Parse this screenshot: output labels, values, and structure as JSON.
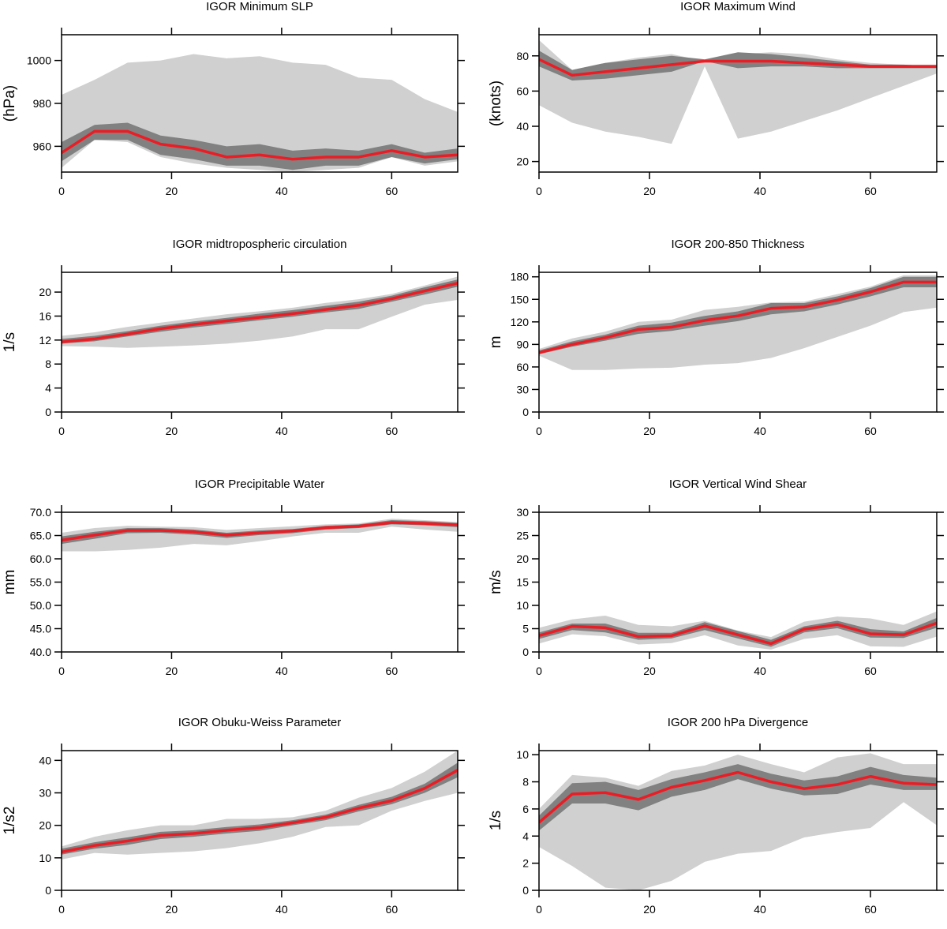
{
  "chart_data": [
    {
      "type": "area",
      "title": "IGOR Minimum SLP",
      "ylabel": "(hPa)",
      "x": [
        0,
        6,
        12,
        18,
        24,
        30,
        36,
        42,
        48,
        54,
        60,
        66,
        72
      ],
      "xlim": [
        0,
        72
      ],
      "ylim": [
        948,
        1012
      ],
      "xticks": [
        0,
        20,
        40,
        60
      ],
      "yticks": [
        960,
        980,
        1000
      ],
      "ytick_labels": [
        "960",
        "980",
        "1000"
      ],
      "series": [
        {
          "role": "outer_range",
          "upper": [
            984,
            991,
            999,
            1000,
            1003,
            1001,
            1002,
            999,
            998,
            992,
            991,
            982,
            976
          ],
          "lower": [
            950,
            963,
            962,
            955,
            952,
            950,
            949,
            948,
            949,
            950,
            955,
            951,
            953
          ]
        },
        {
          "role": "inner_range",
          "upper": [
            962,
            970,
            971,
            965,
            963,
            960,
            961,
            958,
            959,
            958,
            961,
            957,
            959
          ],
          "lower": [
            953,
            963,
            963,
            956,
            954,
            951,
            951,
            949,
            951,
            951,
            955,
            952,
            954
          ]
        },
        {
          "role": "mean",
          "values": [
            957,
            967,
            967,
            961,
            959,
            955,
            956,
            954,
            955,
            955,
            958,
            955,
            956
          ]
        }
      ]
    },
    {
      "type": "area",
      "title": "IGOR Maximum Wind",
      "ylabel": "(knots)",
      "x": [
        0,
        6,
        12,
        18,
        24,
        30,
        36,
        42,
        48,
        54,
        60,
        66,
        72
      ],
      "xlim": [
        0,
        72
      ],
      "ylim": [
        14,
        92
      ],
      "xticks": [
        0,
        20,
        40,
        60
      ],
      "yticks": [
        20,
        40,
        60,
        80
      ],
      "ytick_labels": [
        "20",
        "40",
        "60",
        "80"
      ],
      "series": [
        {
          "role": "outer_range",
          "upper": [
            89,
            72,
            76,
            79,
            81,
            77,
            81,
            82,
            81,
            78,
            76,
            75,
            75
          ],
          "lower": [
            52,
            42,
            37,
            34,
            30,
            74,
            33,
            37,
            43,
            49,
            56,
            63,
            70
          ]
        },
        {
          "role": "inner_range",
          "upper": [
            83,
            72,
            76,
            78,
            80,
            78,
            82,
            81,
            79,
            77,
            75,
            75,
            74
          ],
          "lower": [
            74,
            66,
            67,
            69,
            71,
            77,
            73,
            74,
            74,
            73,
            73,
            73,
            73
          ]
        },
        {
          "role": "mean",
          "values": [
            78,
            69,
            71,
            73,
            75,
            77,
            77,
            77,
            76,
            75,
            74,
            74,
            74
          ]
        }
      ]
    },
    {
      "type": "area",
      "title": "IGOR midtropospheric circulation",
      "ylabel": "1/s",
      "x": [
        0,
        6,
        12,
        18,
        24,
        30,
        36,
        42,
        48,
        54,
        60,
        66,
        72
      ],
      "xlim": [
        0,
        72
      ],
      "ylim": [
        0,
        23.3
      ],
      "xticks": [
        0,
        20,
        40,
        60
      ],
      "yticks": [
        0,
        4,
        8,
        12,
        16,
        20
      ],
      "ytick_labels": [
        "0",
        "4",
        "8",
        "12",
        "16",
        "20"
      ],
      "series": [
        {
          "role": "outer_range",
          "upper": [
            12.7,
            13.3,
            14.2,
            14.9,
            15.6,
            16.3,
            16.8,
            17.4,
            18.2,
            18.8,
            19.7,
            21.1,
            22.6
          ],
          "lower": [
            11,
            10.9,
            10.7,
            10.9,
            11.1,
            11.4,
            11.9,
            12.6,
            13.8,
            13.8,
            15.9,
            17.9,
            18.7
          ]
        },
        {
          "role": "inner_range",
          "upper": [
            12.2,
            12.7,
            13.5,
            14.4,
            15.1,
            15.7,
            16.4,
            17,
            17.7,
            18.4,
            19.4,
            20.8,
            22.1
          ],
          "lower": [
            11.4,
            11.8,
            12.6,
            13.4,
            14.1,
            14.7,
            15.3,
            15.9,
            16.6,
            17.2,
            18.4,
            19.6,
            20.9
          ]
        },
        {
          "role": "mean",
          "values": [
            11.7,
            12.2,
            13,
            13.9,
            14.6,
            15.2,
            15.8,
            16.4,
            17.1,
            17.8,
            18.9,
            20.2,
            21.5
          ]
        }
      ]
    },
    {
      "type": "area",
      "title": "IGOR 200-850 Thickness",
      "ylabel": "m",
      "x": [
        0,
        6,
        12,
        18,
        24,
        30,
        36,
        42,
        48,
        54,
        60,
        66,
        72
      ],
      "xlim": [
        0,
        72
      ],
      "ylim": [
        0,
        186
      ],
      "xticks": [
        0,
        20,
        40,
        60
      ],
      "yticks": [
        0,
        30,
        60,
        90,
        120,
        150,
        180
      ],
      "ytick_labels": [
        "0",
        "30",
        "60",
        "90",
        "120",
        "150",
        "180"
      ],
      "series": [
        {
          "role": "outer_range",
          "upper": [
            84,
            98,
            107,
            120,
            123,
            136,
            140,
            146,
            147,
            157,
            167,
            182,
            182
          ],
          "lower": [
            75,
            56,
            56,
            58,
            59,
            63,
            65,
            72,
            85,
            100,
            115,
            133,
            139
          ]
        },
        {
          "role": "inner_range",
          "upper": [
            82,
            94,
            103,
            115,
            119,
            128,
            134,
            145,
            145,
            154,
            165,
            180,
            180
          ],
          "lower": [
            77,
            87,
            95,
            104,
            108,
            115,
            121,
            130,
            134,
            143,
            154,
            166,
            166
          ]
        },
        {
          "role": "mean",
          "values": [
            79,
            90,
            99,
            110,
            113,
            122,
            128,
            138,
            140,
            149,
            160,
            173,
            173
          ]
        }
      ]
    },
    {
      "type": "area",
      "title": "IGOR Precipitable Water",
      "ylabel": "mm",
      "x": [
        0,
        6,
        12,
        18,
        24,
        30,
        36,
        42,
        48,
        54,
        60,
        66,
        72
      ],
      "xlim": [
        0,
        72
      ],
      "ylim": [
        40,
        70
      ],
      "xticks": [
        0,
        20,
        40,
        60
      ],
      "yticks": [
        40,
        45,
        50,
        55,
        60,
        65,
        70
      ],
      "ytick_labels": [
        "40.0",
        "45.0",
        "50.0",
        "55.0",
        "60.0",
        "65.0",
        "70.0"
      ],
      "series": [
        {
          "role": "outer_range",
          "upper": [
            65.6,
            66.6,
            67.1,
            66.9,
            66.8,
            66.2,
            66.6,
            67,
            67.4,
            67.6,
            68.6,
            68.3,
            67.9
          ],
          "lower": [
            61.6,
            61.6,
            61.9,
            62.4,
            63.2,
            62.9,
            63.8,
            64.8,
            65.6,
            65.6,
            66.9,
            66.3,
            65.8
          ]
        },
        {
          "role": "inner_range",
          "upper": [
            64.8,
            65.8,
            66.6,
            66.6,
            66.3,
            65.6,
            66.1,
            66.4,
            67.1,
            67.4,
            68.3,
            68.1,
            67.7
          ],
          "lower": [
            63.2,
            64.3,
            65.5,
            65.6,
            65.2,
            64.5,
            65.1,
            65.5,
            66.3,
            66.6,
            67.4,
            67.2,
            66.8
          ]
        },
        {
          "role": "mean",
          "values": [
            64,
            65.1,
            66.1,
            66.1,
            65.8,
            65.1,
            65.6,
            66,
            66.7,
            67,
            67.8,
            67.6,
            67.3
          ]
        }
      ]
    },
    {
      "type": "area",
      "title": "IGOR Vertical Wind Shear",
      "ylabel": "m/s",
      "x": [
        0,
        6,
        12,
        18,
        24,
        30,
        36,
        42,
        48,
        54,
        60,
        66,
        72
      ],
      "xlim": [
        0,
        72
      ],
      "ylim": [
        0,
        30
      ],
      "xticks": [
        0,
        20,
        40,
        60
      ],
      "yticks": [
        0,
        5,
        10,
        15,
        20,
        25,
        30
      ],
      "ytick_labels": [
        "0",
        "5",
        "10",
        "15",
        "20",
        "25",
        "30"
      ],
      "series": [
        {
          "role": "outer_range",
          "upper": [
            5.2,
            7,
            7.8,
            5.8,
            5.5,
            6.7,
            4.6,
            3.2,
            6.5,
            7.6,
            7.2,
            5.8,
            8.7
          ],
          "lower": [
            1.8,
            3.8,
            3.4,
            1.6,
            1.9,
            3.6,
            1.4,
            0.5,
            2.8,
            3.6,
            1.2,
            1.1,
            3.3
          ]
        },
        {
          "role": "inner_range",
          "upper": [
            4.2,
            6.1,
            6.1,
            4.1,
            4.1,
            6.4,
            4.5,
            2.6,
            5.5,
            6.7,
            4.9,
            4.4,
            7.3
          ],
          " lower": [
            2.8,
            4.7,
            4.2,
            2.6,
            2.9,
            4.7,
            2.9,
            1.1,
            4.2,
            5.1,
            3.1,
            3,
            5.2
          ]
        },
        {
          "role": "mean",
          "values": [
            3.5,
            5.5,
            5.2,
            3.3,
            3.5,
            5.6,
            3.7,
            1.8,
            4.9,
            5.9,
            3.9,
            3.7,
            6.2
          ]
        }
      ]
    },
    {
      "type": "area",
      "title": "IGOR Obuku-Weiss Parameter",
      "ylabel": "1/s2",
      "x": [
        0,
        6,
        12,
        18,
        24,
        30,
        36,
        42,
        48,
        54,
        60,
        66,
        72
      ],
      "xlim": [
        0,
        72
      ],
      "ylim": [
        0,
        43
      ],
      "xticks": [
        0,
        20,
        40,
        60
      ],
      "yticks": [
        0,
        10,
        20,
        30,
        40
      ],
      "ytick_labels": [
        "0",
        "10",
        "20",
        "30",
        "40"
      ],
      "series": [
        {
          "role": "outer_range",
          "upper": [
            13.5,
            16.5,
            18.5,
            20,
            20,
            22,
            22,
            22.5,
            24.5,
            28.5,
            31.5,
            36.5,
            43
          ],
          " lower": [
            9.5,
            11.5,
            11,
            11.5,
            12,
            13,
            14.5,
            16.5,
            19.5,
            20,
            24.5,
            27.5,
            30
          ]
        },
        {
          "role": "inner_range",
          "upper": [
            12.8,
            14.8,
            16.3,
            18,
            18.5,
            19.5,
            20.3,
            21.6,
            23.3,
            26.3,
            28.8,
            32.8,
            39.3
          ],
          "lower": [
            11,
            12.8,
            14,
            15.8,
            16.5,
            17.5,
            18.3,
            20,
            21.6,
            24.3,
            26.5,
            30,
            34.8
          ]
        },
        {
          "role": "mean",
          "values": [
            11.8,
            13.8,
            15.2,
            16.9,
            17.5,
            18.5,
            19.3,
            20.8,
            22.5,
            25.3,
            27.6,
            31.4,
            37
          ]
        }
      ]
    },
    {
      "type": "area",
      "title": "IGOR 200 hPa Divergence",
      "ylabel": "1/s",
      "x": [
        0,
        6,
        12,
        18,
        24,
        30,
        36,
        42,
        48,
        54,
        60,
        66,
        72
      ],
      "xlim": [
        0,
        72
      ],
      "ylim": [
        0,
        10.3
      ],
      "xticks": [
        0,
        20,
        40,
        60
      ],
      "yticks": [
        0,
        2,
        4,
        6,
        8,
        10
      ],
      "ytick_labels": [
        "0",
        "2",
        "4",
        "6",
        "8",
        "10"
      ],
      "series": [
        {
          "role": "outer_range",
          "upper": [
            6,
            8.5,
            8.3,
            7.7,
            8.8,
            9.2,
            10,
            9.3,
            8.7,
            9.8,
            10.1,
            9.3,
            9.3
          ],
          "lower": [
            3.2,
            1.8,
            0.2,
            0,
            0.7,
            2.1,
            2.7,
            2.9,
            3.9,
            4.3,
            4.6,
            6.5,
            4.8
          ]
        },
        {
          "role": "inner_range",
          "upper": [
            5.5,
            7.9,
            8,
            7.4,
            8.2,
            8.7,
            9.3,
            8.6,
            8.1,
            8.4,
            9.1,
            8.5,
            8.3
          ],
          "lower": [
            4.4,
            6.4,
            6.4,
            5.9,
            6.9,
            7.4,
            8.2,
            7.5,
            7,
            7.1,
            7.8,
            7.4,
            7.4
          ]
        },
        {
          "role": "mean",
          "values": [
            5,
            7.1,
            7.2,
            6.7,
            7.6,
            8.1,
            8.7,
            8,
            7.5,
            7.8,
            8.4,
            7.9,
            7.8
          ]
        }
      ]
    }
  ],
  "colors": {
    "outer_range": "#d0d0d0",
    "inner_range": "#818181",
    "mean": "#ec1c24",
    "axis": "#000000"
  }
}
